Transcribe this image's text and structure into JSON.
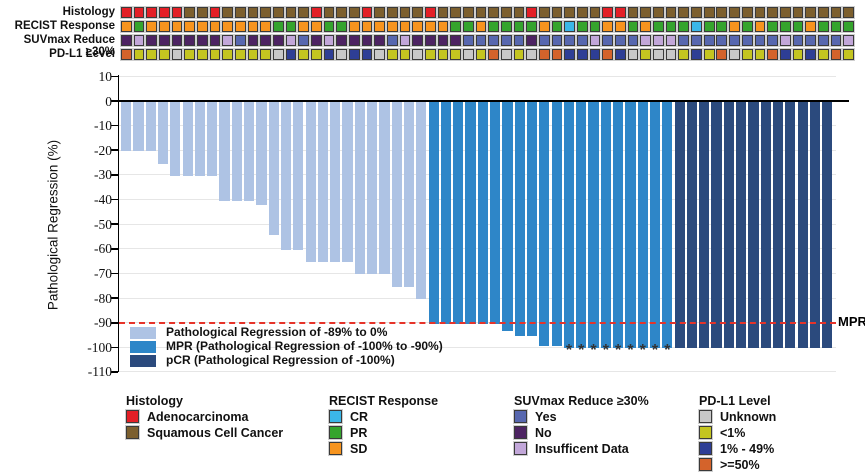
{
  "tracks": {
    "labels": [
      "Histology",
      "RECIST Response",
      "SUVmax Reduce ≥30%",
      "PD-L1 Level"
    ],
    "order": [
      "histology",
      "recist",
      "suvmax",
      "pdl1"
    ],
    "histology": [
      "A",
      "A",
      "A",
      "A",
      "A",
      "S",
      "S",
      "A",
      "S",
      "S",
      "S",
      "S",
      "S",
      "S",
      "S",
      "A",
      "S",
      "S",
      "S",
      "A",
      "S",
      "S",
      "S",
      "S",
      "A",
      "S",
      "S",
      "S",
      "S",
      "S",
      "S",
      "S",
      "A",
      "S",
      "S",
      "S",
      "S",
      "S",
      "A",
      "A",
      "S",
      "S",
      "S",
      "S",
      "S",
      "S",
      "S",
      "S",
      "S",
      "S",
      "S",
      "S",
      "S",
      "S",
      "S",
      "S",
      "S",
      "S"
    ],
    "recist": [
      "SD",
      "PR",
      "SD",
      "SD",
      "SD",
      "SD",
      "SD",
      "SD",
      "SD",
      "SD",
      "SD",
      "SD",
      "PR",
      "PR",
      "SD",
      "SD",
      "PR",
      "PR",
      "SD",
      "SD",
      "SD",
      "SD",
      "SD",
      "SD",
      "SD",
      "SD",
      "PR",
      "PR",
      "SD",
      "PR",
      "PR",
      "PR",
      "PR",
      "SD",
      "PR",
      "CR",
      "PR",
      "PR",
      "SD",
      "SD",
      "PR",
      "SD",
      "PR",
      "PR",
      "PR",
      "CR",
      "PR",
      "PR",
      "SD",
      "PR",
      "SD",
      "PR",
      "PR",
      "PR",
      "SD",
      "PR",
      "PR",
      "PR"
    ],
    "suvmax": [
      "N",
      "I",
      "N",
      "N",
      "N",
      "N",
      "N",
      "N",
      "I",
      "Y",
      "N",
      "N",
      "N",
      "I",
      "Y",
      "N",
      "I",
      "N",
      "N",
      "N",
      "N",
      "Y",
      "I",
      "N",
      "N",
      "N",
      "N",
      "Y",
      "Y",
      "Y",
      "Y",
      "Y",
      "N",
      "Y",
      "Y",
      "Y",
      "Y",
      "I",
      "Y",
      "Y",
      "Y",
      "I",
      "I",
      "I",
      "Y",
      "Y",
      "Y",
      "Y",
      "Y",
      "Y",
      "Y",
      "Y",
      "I",
      "Y",
      "Y",
      "Y",
      "Y",
      "I"
    ],
    "pdl1": [
      "H",
      "L",
      "L",
      "L",
      "U",
      "L",
      "L",
      "L",
      "L",
      "L",
      "L",
      "L",
      "U",
      "M",
      "L",
      "L",
      "M",
      "U",
      "M",
      "M",
      "U",
      "L",
      "L",
      "U",
      "L",
      "L",
      "L",
      "U",
      "L",
      "H",
      "U",
      "L",
      "U",
      "H",
      "H",
      "M",
      "M",
      "M",
      "H",
      "M",
      "U",
      "L",
      "U",
      "U",
      "L",
      "M",
      "L",
      "H",
      "U",
      "L",
      "L",
      "H",
      "M",
      "L",
      "M",
      "L",
      "H",
      "L"
    ],
    "palette": {
      "histology": {
        "A": "#e31f26",
        "S": "#7c5f2e"
      },
      "recist": {
        "SD": "#f7941e",
        "PR": "#35a42d",
        "CR": "#3bb7e8"
      },
      "suvmax": {
        "Y": "#5767af",
        "N": "#4d2362",
        "I": "#c2a7d9"
      },
      "pdl1": {
        "U": "#c8c8c8",
        "L": "#c4c520",
        "M": "#2e3e95",
        "H": "#d4632b"
      }
    }
  },
  "chart_data": {
    "type": "bar",
    "title": "",
    "ylabel": "Pathological Regression (%)",
    "ylim": [
      -110,
      10
    ],
    "yticks": [
      10,
      0,
      -10,
      -20,
      -30,
      -40,
      -50,
      -60,
      -70,
      -80,
      -90,
      -100,
      -110
    ],
    "grid": true,
    "values": [
      -20,
      -20,
      -20,
      -25,
      -30,
      -30,
      -30,
      -30,
      -40,
      -40,
      -40,
      -42,
      -54,
      -60,
      -60,
      -65,
      -65,
      -65,
      -65,
      -70,
      -70,
      -70,
      -75,
      -75,
      -80,
      -90,
      -90,
      -90,
      -90,
      -90,
      -90,
      -93,
      -95,
      -95,
      -99,
      -99,
      -100,
      -100,
      -100,
      -100,
      -100,
      -100,
      -100,
      -100,
      -100,
      -100,
      -100,
      -100,
      -100,
      -100,
      -100,
      -100,
      -100,
      -100,
      -100,
      -100,
      -100,
      -100
    ],
    "segments": [
      {
        "class": "light",
        "count": 25
      },
      {
        "class": "mpr",
        "count": 20
      },
      {
        "class": "pcr",
        "count": 13
      }
    ],
    "colors": {
      "light": "#aec3e4",
      "mpr": "#2e86c8",
      "pcr": "#2b4a7d"
    },
    "asterisk_indices": [
      36,
      37,
      38,
      39,
      40,
      41,
      42,
      43,
      44
    ],
    "asterisk_symbol": "*",
    "mpr_line": -90,
    "mpr_line_label": "MPR",
    "mpr_line_color": "#e63329"
  },
  "plot_legend": [
    {
      "label": "Pathological Regression of -89% to 0%",
      "color": "#aec3e4"
    },
    {
      "label": "MPR (Pathological Regression of -100% to -90%)",
      "color": "#2e86c8"
    },
    {
      "label": "pCR (Pathological Regression of -100%)",
      "color": "#2b4a7d"
    }
  ],
  "bottom_legend": [
    {
      "title": "Histology",
      "items": [
        {
          "label": "Adenocarcinoma",
          "color": "#e31f26"
        },
        {
          "label": "Squamous Cell Cancer",
          "color": "#7c5f2e"
        }
      ]
    },
    {
      "title": "RECIST Response",
      "items": [
        {
          "label": "CR",
          "color": "#3bb7e8"
        },
        {
          "label": "PR",
          "color": "#35a42d"
        },
        {
          "label": "SD",
          "color": "#f7941e"
        }
      ]
    },
    {
      "title": "SUVmax Reduce ≥30%",
      "items": [
        {
          "label": "Yes",
          "color": "#5767af"
        },
        {
          "label": "No",
          "color": "#4d2362"
        },
        {
          "label": "Insufficent Data",
          "color": "#c2a7d9"
        }
      ]
    },
    {
      "title": "PD-L1 Level",
      "items": [
        {
          "label": "Unknown",
          "color": "#c8c8c8"
        },
        {
          "label": "<1%",
          "color": "#c4c520"
        },
        {
          "label": "1% - 49%",
          "color": "#2e3e95"
        },
        {
          "label": ">=50%",
          "color": "#d4632b"
        }
      ]
    }
  ]
}
